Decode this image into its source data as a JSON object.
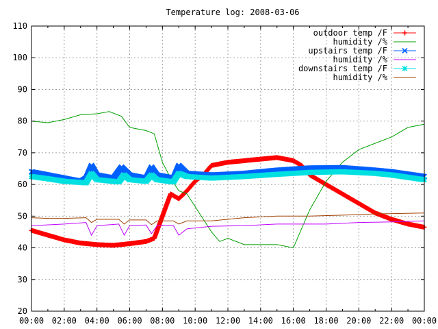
{
  "chart_data": {
    "type": "line",
    "title": "Temperature log: 2008-03-06",
    "xlabel": "",
    "ylabel": "",
    "xlim": [
      "00:00",
      "24:00"
    ],
    "ylim": [
      20,
      110
    ],
    "y_ticks": [
      "20",
      "30",
      "40",
      "50",
      "60",
      "70",
      "80",
      "90",
      "100",
      "110"
    ],
    "x_ticks": [
      "00:00",
      "02:00",
      "04:00",
      "06:00",
      "08:00",
      "10:00",
      "12:00",
      "14:00",
      "16:00",
      "18:00",
      "20:00",
      "22:00",
      "00:00"
    ],
    "grid": true,
    "legend_position": "top-right",
    "series": [
      {
        "name": "outdoor temp /F",
        "color": "#ff0000",
        "marker": "plus",
        "points": [
          [
            "00:00",
            45.5
          ],
          [
            "01:00",
            44
          ],
          [
            "02:00",
            42.5
          ],
          [
            "03:00",
            41.5
          ],
          [
            "04:00",
            41
          ],
          [
            "05:00",
            40.8
          ],
          [
            "06:00",
            41.3
          ],
          [
            "07:00",
            42
          ],
          [
            "07:30",
            43
          ],
          [
            "08:00",
            50
          ],
          [
            "08:30",
            57
          ],
          [
            "09:00",
            55.5
          ],
          [
            "09:30",
            58
          ],
          [
            "10:00",
            61
          ],
          [
            "10:30",
            63
          ],
          [
            "11:00",
            66
          ],
          [
            "12:00",
            67
          ],
          [
            "13:00",
            67.5
          ],
          [
            "14:00",
            68
          ],
          [
            "15:00",
            68.5
          ],
          [
            "16:00",
            67.5
          ],
          [
            "16:30",
            66
          ],
          [
            "17:00",
            63
          ],
          [
            "18:00",
            60
          ],
          [
            "19:00",
            57
          ],
          [
            "20:00",
            54
          ],
          [
            "21:00",
            51
          ],
          [
            "22:00",
            49
          ],
          [
            "23:00",
            47.5
          ],
          [
            "24:00",
            46.5
          ]
        ]
      },
      {
        "name": "humidity /%",
        "color": "#00a000",
        "marker": "none",
        "points": [
          [
            "00:00",
            80
          ],
          [
            "01:00",
            79.5
          ],
          [
            "02:00",
            80.5
          ],
          [
            "03:00",
            82
          ],
          [
            "04:00",
            82.3
          ],
          [
            "04:45",
            83
          ],
          [
            "05:30",
            81.5
          ],
          [
            "06:00",
            78
          ],
          [
            "07:00",
            77
          ],
          [
            "07:30",
            76
          ],
          [
            "08:00",
            67
          ],
          [
            "08:30",
            62
          ],
          [
            "09:00",
            58
          ],
          [
            "09:30",
            57
          ],
          [
            "10:00",
            53
          ],
          [
            "10:30",
            49
          ],
          [
            "11:00",
            45
          ],
          [
            "11:30",
            42
          ],
          [
            "12:00",
            43
          ],
          [
            "13:00",
            41
          ],
          [
            "14:00",
            41
          ],
          [
            "15:00",
            41
          ],
          [
            "16:00",
            40
          ],
          [
            "16:20",
            44
          ],
          [
            "17:00",
            52
          ],
          [
            "18:00",
            61
          ],
          [
            "19:00",
            67
          ],
          [
            "20:00",
            71
          ],
          [
            "21:00",
            73
          ],
          [
            "22:00",
            75
          ],
          [
            "23:00",
            78
          ],
          [
            "24:00",
            79
          ]
        ]
      },
      {
        "name": "upstairs temp /F",
        "color": "#0060ff",
        "marker": "x",
        "points": [
          [
            "00:00",
            64
          ],
          [
            "01:00",
            63
          ],
          [
            "02:00",
            62
          ],
          [
            "03:00",
            61
          ],
          [
            "03:20",
            62
          ],
          [
            "03:40",
            66
          ],
          [
            "04:00",
            63
          ],
          [
            "05:00",
            62
          ],
          [
            "05:30",
            65.5
          ],
          [
            "06:00",
            63
          ],
          [
            "07:00",
            62
          ],
          [
            "07:20",
            65.5
          ],
          [
            "07:40",
            63
          ],
          [
            "08:40",
            62
          ],
          [
            "09:00",
            66
          ],
          [
            "09:30",
            63.5
          ],
          [
            "11:00",
            63
          ],
          [
            "13:00",
            63.5
          ],
          [
            "15:00",
            64.5
          ],
          [
            "17:00",
            65.2
          ],
          [
            "19:00",
            65.3
          ],
          [
            "21:00",
            64.5
          ],
          [
            "22:00",
            64
          ],
          [
            "24:00",
            62.5
          ]
        ]
      },
      {
        "name": "humidity /%",
        "color": "#c000ff",
        "marker": "none",
        "points": [
          [
            "00:00",
            47
          ],
          [
            "02:00",
            47.5
          ],
          [
            "03:20",
            48
          ],
          [
            "03:40",
            44
          ],
          [
            "04:00",
            47
          ],
          [
            "05:20",
            47.5
          ],
          [
            "05:40",
            44
          ],
          [
            "06:00",
            47
          ],
          [
            "07:00",
            47.2
          ],
          [
            "07:20",
            44.5
          ],
          [
            "07:40",
            47
          ],
          [
            "08:40",
            47
          ],
          [
            "09:00",
            44
          ],
          [
            "09:30",
            46
          ],
          [
            "11:00",
            46.8
          ],
          [
            "13:00",
            47
          ],
          [
            "15:00",
            47.5
          ],
          [
            "18:00",
            47.5
          ],
          [
            "20:00",
            48
          ],
          [
            "22:00",
            48.2
          ],
          [
            "24:00",
            48.5
          ]
        ]
      },
      {
        "name": "downstairs temp /F",
        "color": "#00e0e0",
        "marker": "star",
        "points": [
          [
            "00:00",
            62.5
          ],
          [
            "01:00",
            61.8
          ],
          [
            "02:00",
            61
          ],
          [
            "03:20",
            60.5
          ],
          [
            "03:40",
            63.5
          ],
          [
            "04:00",
            61.5
          ],
          [
            "05:20",
            60.8
          ],
          [
            "05:40",
            63
          ],
          [
            "06:00",
            61.5
          ],
          [
            "07:00",
            61
          ],
          [
            "07:20",
            63
          ],
          [
            "07:40",
            61.5
          ],
          [
            "08:40",
            60.8
          ],
          [
            "09:00",
            63.5
          ],
          [
            "09:30",
            62.5
          ],
          [
            "11:00",
            62
          ],
          [
            "13:00",
            62.5
          ],
          [
            "15:00",
            63.2
          ],
          [
            "17:00",
            63.8
          ],
          [
            "19:00",
            64
          ],
          [
            "21:00",
            63.5
          ],
          [
            "22:00",
            63
          ],
          [
            "24:00",
            61.5
          ]
        ]
      },
      {
        "name": "humidity /%",
        "color": "#a04000",
        "marker": "none",
        "points": [
          [
            "00:00",
            49.5
          ],
          [
            "01:00",
            49.3
          ],
          [
            "02:00",
            49.3
          ],
          [
            "03:20",
            49.5
          ],
          [
            "03:40",
            48
          ],
          [
            "04:00",
            49
          ],
          [
            "05:20",
            49
          ],
          [
            "05:40",
            47.5
          ],
          [
            "06:00",
            48.8
          ],
          [
            "07:00",
            48.8
          ],
          [
            "07:20",
            47.3
          ],
          [
            "07:40",
            48.5
          ],
          [
            "08:40",
            48.5
          ],
          [
            "09:00",
            47.5
          ],
          [
            "09:30",
            48.5
          ],
          [
            "11:00",
            48.5
          ],
          [
            "13:00",
            49.5
          ],
          [
            "15:00",
            50
          ],
          [
            "17:00",
            50
          ],
          [
            "19:00",
            50.3
          ],
          [
            "21:00",
            50.7
          ],
          [
            "24:00",
            51
          ]
        ]
      }
    ]
  }
}
